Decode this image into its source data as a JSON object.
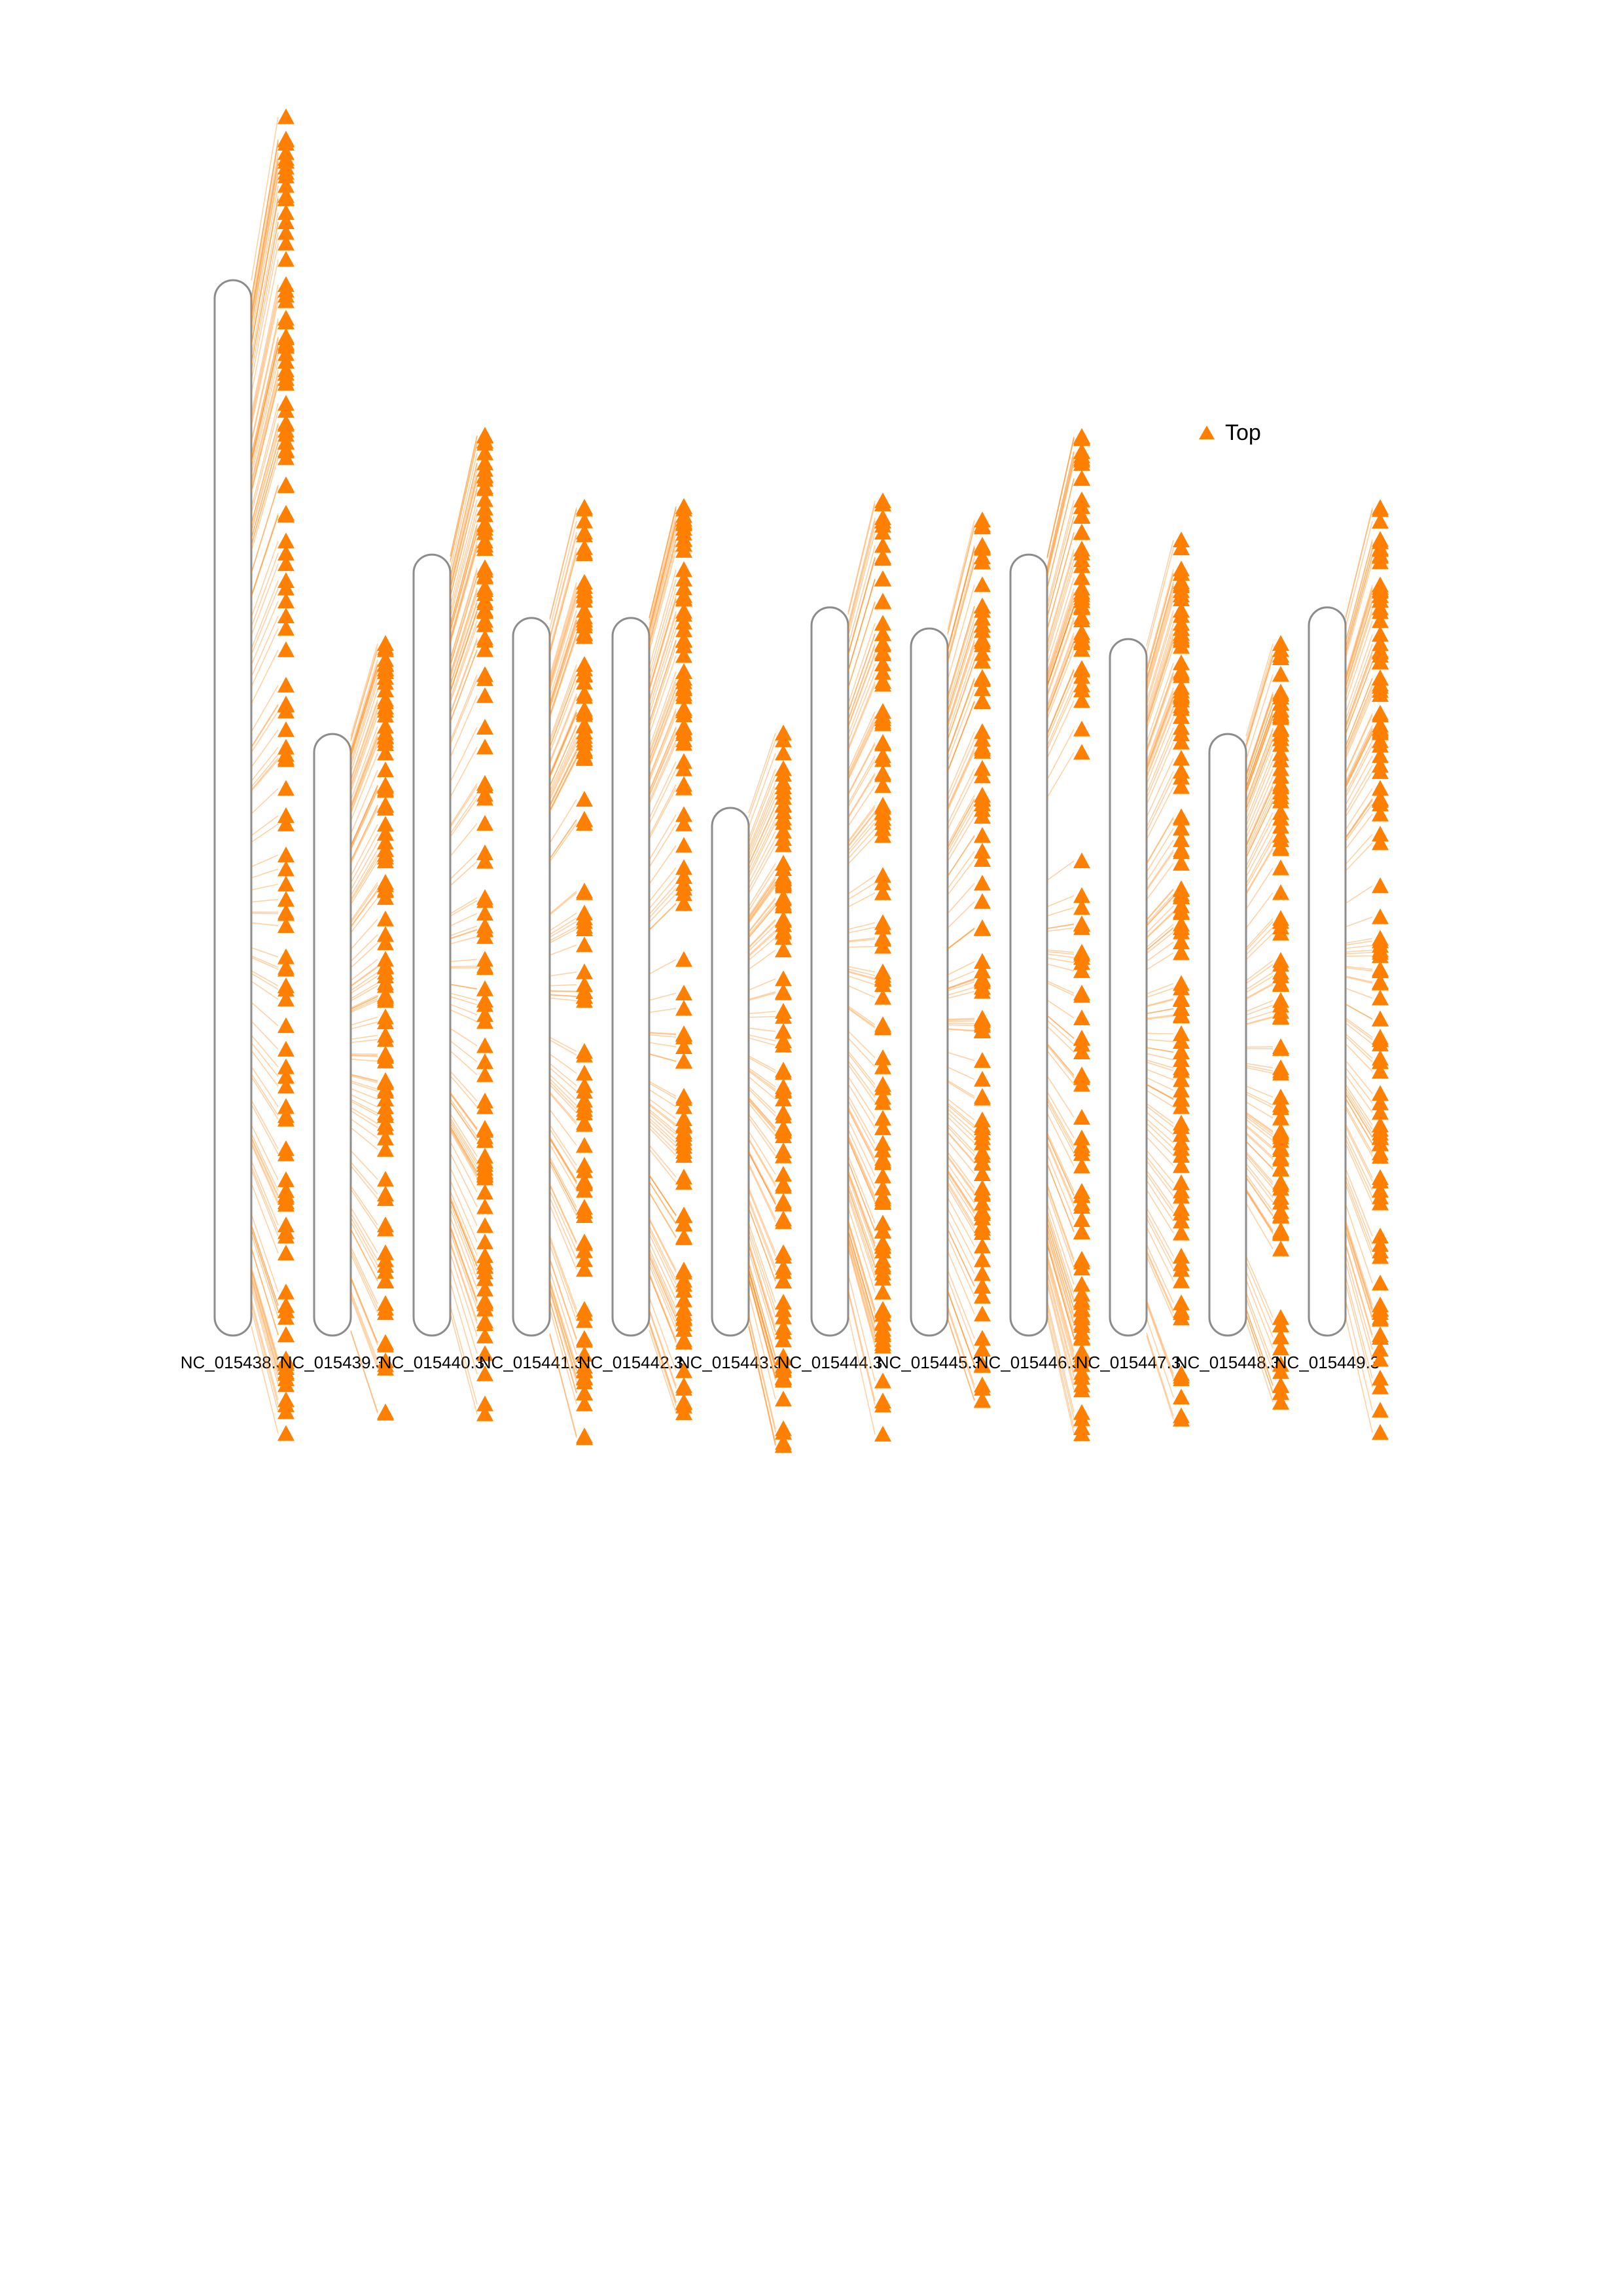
{
  "legend": {
    "label": "Top",
    "marker": "triangle-up",
    "color": "#ff7f00"
  },
  "colors": {
    "marker": "#ff7f00",
    "chromosome_outline": "#8c8c8c"
  },
  "chromosomes": [
    {
      "label": "NC_015438.3",
      "rel_length": 1.0
    },
    {
      "label": "NC_015439.3",
      "rel_length": 0.57
    },
    {
      "label": "NC_015440.3",
      "rel_length": 0.74
    },
    {
      "label": "NC_015441.3",
      "rel_length": 0.68
    },
    {
      "label": "NC_015442.3",
      "rel_length": 0.68
    },
    {
      "label": "NC_015443.3",
      "rel_length": 0.5
    },
    {
      "label": "NC_015444.3",
      "rel_length": 0.69
    },
    {
      "label": "NC_015445.3",
      "rel_length": 0.67
    },
    {
      "label": "NC_015446.3",
      "rel_length": 0.74
    },
    {
      "label": "NC_015447.3",
      "rel_length": 0.66
    },
    {
      "label": "NC_015448.3",
      "rel_length": 0.57
    },
    {
      "label": "NC_015449.3",
      "rel_length": 0.69
    }
  ]
}
